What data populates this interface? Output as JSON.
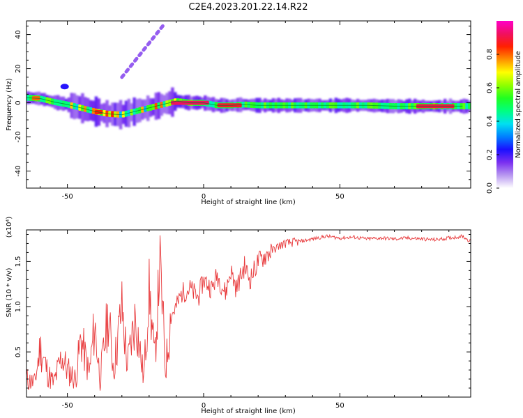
{
  "title": "C2E4.2023.201.22.14.R22",
  "colors": {
    "snr_line": "#e8393b",
    "ridge_line": "#007a2a",
    "axis": "#000000"
  },
  "chart_data": [
    {
      "type": "heatmap",
      "title": "C2E4.2023.201.22.14.R22",
      "xlabel": "Height of straight line (km)",
      "ylabel": "Frequency (Hz)",
      "xlim": [
        -65,
        98
      ],
      "ylim": [
        -50,
        48
      ],
      "xticks": [
        "-50",
        "0",
        "50"
      ],
      "xtick_values": [
        -50,
        0,
        50
      ],
      "yticks": [
        "40",
        "20",
        "0",
        "-20",
        "-40"
      ],
      "ytick_values": [
        40,
        20,
        0,
        -20,
        -40
      ],
      "colorbar": {
        "label": "Normalized spectral amplitude",
        "range": [
          0,
          1
        ],
        "ticks": [
          "0.0",
          "0.2",
          "0.4",
          "0.6",
          "0.8"
        ],
        "tick_values": [
          0,
          0.2,
          0.4,
          0.6,
          0.8
        ],
        "colormap": [
          "#ffffff",
          "#b898f0",
          "#7a2ff0",
          "#1a10ff",
          "#0080ff",
          "#00e0f0",
          "#00ff80",
          "#20ff20",
          "#90ff00",
          "#ffff00",
          "#ff9000",
          "#ff2000",
          "#f01060",
          "#ff00c8"
        ]
      },
      "ridge_trace": {
        "x": [
          -65,
          -60,
          -55,
          -50,
          -45,
          -40,
          -35,
          -30,
          -25,
          -20,
          -15,
          -10,
          -5,
          0,
          5,
          10,
          15,
          20,
          30,
          40,
          50,
          60,
          70,
          80,
          90,
          95
        ],
        "y": [
          3,
          2.5,
          0.5,
          -1,
          -3,
          -5,
          -6.5,
          -7,
          -5,
          -3,
          -1,
          1,
          0,
          0,
          -1.5,
          -1.5,
          -1,
          -1.5,
          -1.5,
          -1.5,
          -1.5,
          -1.5,
          -2,
          -2,
          -2,
          -2
        ]
      },
      "features": [
        {
          "x": [
            -30,
            -15
          ],
          "y": [
            15,
            45
          ],
          "description": "faint diagonal streak"
        },
        {
          "x": [
            -52,
            -50
          ],
          "y": [
            8,
            11
          ],
          "description": "isolated blob"
        }
      ]
    },
    {
      "type": "line",
      "xlabel": "Height of straight line (km)",
      "ylabel": "SNR (10 * v/v)",
      "y_multiplier": "(x10⁴)",
      "xlim": [
        -65,
        98
      ],
      "ylim": [
        0,
        1.85
      ],
      "xticks": [
        "-50",
        "0",
        "50"
      ],
      "xtick_values": [
        -50,
        0,
        50
      ],
      "yticks": [
        "0.5",
        "1.0",
        "1.5"
      ],
      "ytick_values": [
        0.5,
        1.0,
        1.5
      ],
      "series": [
        {
          "x": [
            -65,
            -62,
            -60,
            -57,
            -55,
            -52,
            -50,
            -47,
            -45,
            -42,
            -40,
            -38,
            -35,
            -33,
            -30,
            -28,
            -25,
            -22,
            -20,
            -18,
            -16,
            -14,
            -12,
            -10,
            -8,
            -5,
            -2,
            0,
            3,
            5,
            8,
            10,
            12,
            15,
            17,
            20,
            22,
            25,
            28,
            30,
            35,
            40,
            45,
            50,
            55,
            60,
            65,
            70,
            75,
            80,
            85,
            90,
            95,
            98
          ],
          "y": [
            0.2,
            0.15,
            0.55,
            0.25,
            0.15,
            0.45,
            0.3,
            0.2,
            0.65,
            0.25,
            0.8,
            0.2,
            0.9,
            0.3,
            1.0,
            0.35,
            0.9,
            0.2,
            1.2,
            0.4,
            1.5,
            0.3,
            0.9,
            1.0,
            1.15,
            1.2,
            1.1,
            1.3,
            1.2,
            1.35,
            1.15,
            1.4,
            1.2,
            1.45,
            1.3,
            1.5,
            1.55,
            1.62,
            1.68,
            1.7,
            1.72,
            1.75,
            1.78,
            1.76,
            1.77,
            1.75,
            1.76,
            1.75,
            1.76,
            1.75,
            1.74,
            1.76,
            1.78,
            1.72
          ]
        }
      ]
    }
  ]
}
